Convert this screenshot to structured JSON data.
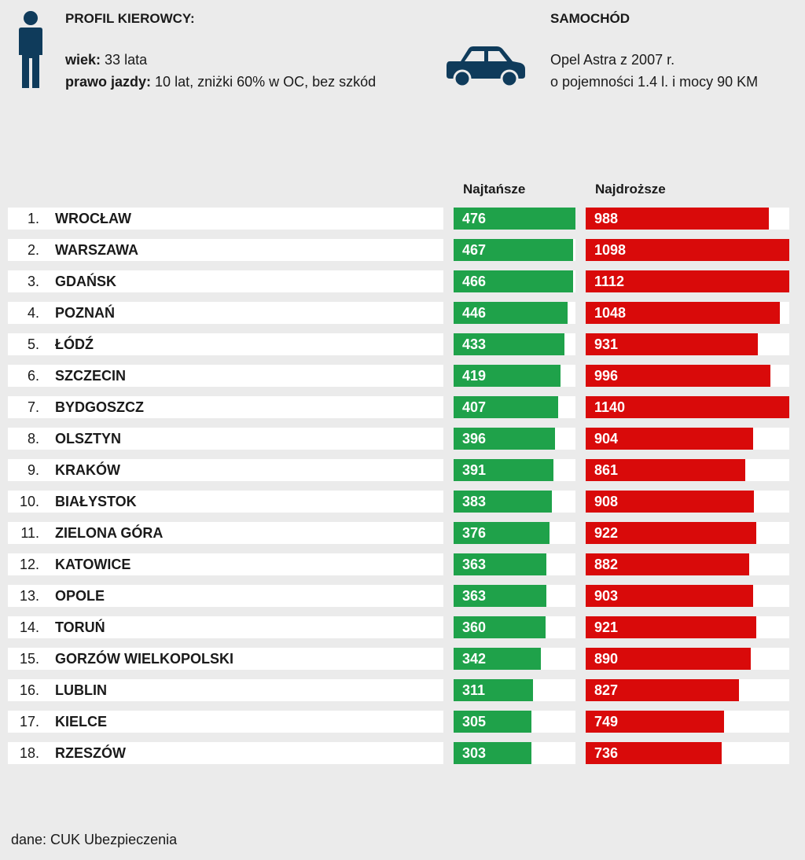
{
  "driver": {
    "title": "PROFIL KIEROWCY:",
    "age_label": "wiek:",
    "age_value": "33 lata",
    "license_label": "prawo jazdy:",
    "license_value": "10 lat, zniżki 60% w OC, bez szkód"
  },
  "car": {
    "title": "SAMOCHÓD",
    "line1": "Opel Astra z 2007 r.",
    "line2": "o pojemności 1.4 l. i mocy 90 KM"
  },
  "colors": {
    "cheapest": "#1fa24a",
    "most_expensive": "#d90a0a",
    "icon": "#0f3b5b"
  },
  "icons": {
    "driver": "person-icon",
    "car": "car-icon"
  },
  "source": "dane: CUK Ubezpieczenia",
  "chart_data": {
    "type": "bar",
    "xlabel": "",
    "ylabel": "",
    "categories": [
      "WROCŁAW",
      "WARSZAWA",
      "GDAŃSK",
      "POZNAŃ",
      "ŁÓDŹ",
      "SZCZECIN",
      "BYDGOSZCZ",
      "OLSZTYN",
      "KRAKÓW",
      "BIAŁYSTOK",
      "ZIELONA GÓRA",
      "KATOWICE",
      "OPOLE",
      "TORUŃ",
      "GORZÓW WIELKOPOLSKI",
      "LUBLIN",
      "KIELCE",
      "RZESZÓW"
    ],
    "ranks": [
      "1.",
      "2.",
      "3.",
      "4.",
      "5.",
      "6.",
      "7.",
      "8.",
      "9.",
      "10.",
      "11.",
      "12.",
      "13.",
      "14.",
      "15.",
      "16.",
      "17.",
      "18."
    ],
    "series": [
      {
        "name": "Najtańsze",
        "values": [
          476,
          467,
          466,
          446,
          433,
          419,
          407,
          396,
          391,
          383,
          376,
          363,
          363,
          360,
          342,
          311,
          305,
          303
        ]
      },
      {
        "name": "Najdroższe",
        "values": [
          988,
          1098,
          1112,
          1048,
          931,
          996,
          1140,
          904,
          861,
          908,
          922,
          882,
          903,
          921,
          890,
          827,
          749,
          736
        ]
      }
    ]
  }
}
